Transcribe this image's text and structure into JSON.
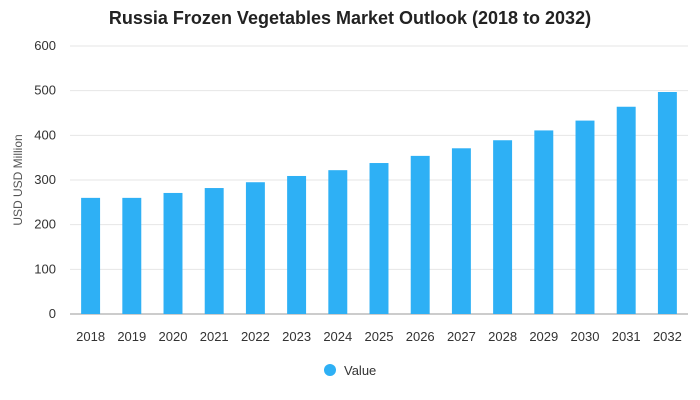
{
  "chart_data": {
    "type": "bar",
    "title": "Russia Frozen Vegetables Market Outlook (2018 to 2032)",
    "xlabel": "",
    "ylabel": "USD USD Million",
    "categories": [
      "2018",
      "2019",
      "2020",
      "2021",
      "2022",
      "2023",
      "2024",
      "2025",
      "2026",
      "2027",
      "2028",
      "2029",
      "2030",
      "2031",
      "2032"
    ],
    "series": [
      {
        "name": "Value",
        "values": [
          260,
          260,
          271,
          282,
          295,
          309,
          322,
          338,
          354,
          371,
          389,
          411,
          433,
          464,
          497
        ],
        "color": "#2eb0f5"
      }
    ],
    "ylim": [
      0,
      600
    ],
    "yticks": [
      0,
      100,
      200,
      300,
      400,
      500,
      600
    ],
    "grid": true,
    "legend_position": "bottom"
  }
}
